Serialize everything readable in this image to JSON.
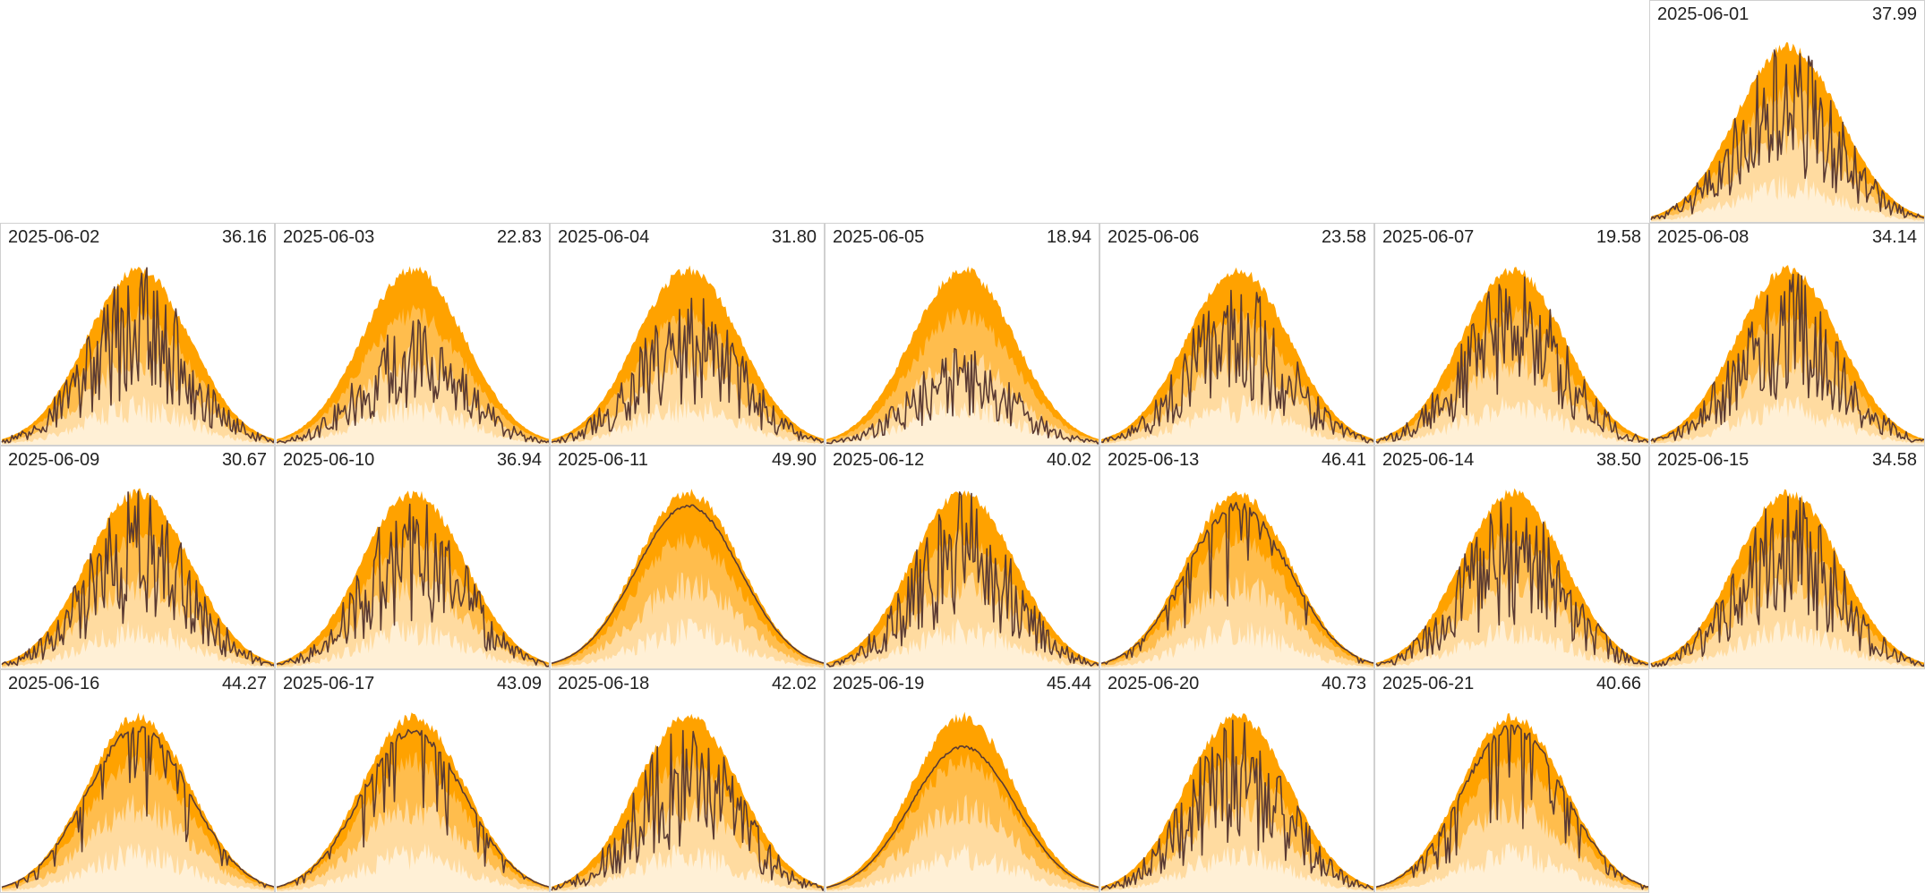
{
  "chart_data": {
    "type": "area",
    "layout": "calendar-grid",
    "columns": 7,
    "first_column_offset": 6,
    "colors": {
      "band_outer": "#ffa200",
      "band_mid": "#ffbd4d",
      "band_inner": "#ffdba0",
      "band_low": "#fff0d6",
      "actual_line": "#5a3a32",
      "cell_border": "#d0d0d0"
    },
    "days": [
      {
        "date": "2025-06-01",
        "total": "37.99",
        "max": 1.0,
        "style": "variable"
      },
      {
        "date": "2025-06-02",
        "total": "36.16",
        "max": 1.0,
        "style": "variable"
      },
      {
        "date": "2025-06-03",
        "total": "22.83",
        "max": 0.7,
        "style": "variable"
      },
      {
        "date": "2025-06-04",
        "total": "31.80",
        "max": 0.88,
        "style": "variable"
      },
      {
        "date": "2025-06-05",
        "total": "18.94",
        "max": 0.55,
        "style": "variable"
      },
      {
        "date": "2025-06-06",
        "total": "23.58",
        "max": 0.93,
        "style": "variable"
      },
      {
        "date": "2025-06-07",
        "total": "19.58",
        "max": 0.98,
        "style": "variable"
      },
      {
        "date": "2025-06-08",
        "total": "34.14",
        "max": 0.98,
        "style": "variable"
      },
      {
        "date": "2025-06-09",
        "total": "30.67",
        "max": 1.0,
        "style": "variable"
      },
      {
        "date": "2025-06-10",
        "total": "36.94",
        "max": 0.98,
        "style": "variable"
      },
      {
        "date": "2025-06-11",
        "total": "49.90",
        "max": 0.92,
        "style": "smooth"
      },
      {
        "date": "2025-06-12",
        "total": "40.02",
        "max": 0.99,
        "style": "variable"
      },
      {
        "date": "2025-06-13",
        "total": "46.41",
        "max": 0.94,
        "style": "mostly-smooth"
      },
      {
        "date": "2025-06-14",
        "total": "38.50",
        "max": 0.97,
        "style": "variable"
      },
      {
        "date": "2025-06-15",
        "total": "34.58",
        "max": 0.97,
        "style": "variable"
      },
      {
        "date": "2025-06-16",
        "total": "44.27",
        "max": 0.95,
        "style": "mostly-smooth"
      },
      {
        "date": "2025-06-17",
        "total": "43.09",
        "max": 0.93,
        "style": "mostly-smooth"
      },
      {
        "date": "2025-06-18",
        "total": "42.02",
        "max": 0.97,
        "style": "variable"
      },
      {
        "date": "2025-06-19",
        "total": "45.44",
        "max": 0.82,
        "style": "smooth"
      },
      {
        "date": "2025-06-20",
        "total": "40.73",
        "max": 0.98,
        "style": "variable"
      },
      {
        "date": "2025-06-21",
        "total": "40.66",
        "max": 0.95,
        "style": "mostly-smooth"
      }
    ]
  }
}
